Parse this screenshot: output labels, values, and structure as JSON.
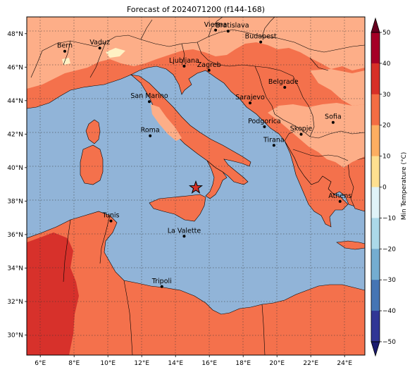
{
  "title": "Forecast of 2024071200 (f144-168)",
  "map": {
    "lon_range": [
      5.2,
      25.2
    ],
    "lat_range": [
      28.8,
      49.0
    ],
    "lon_ticks": [
      "6°E",
      "8°E",
      "10°E",
      "12°E",
      "14°E",
      "16°E",
      "18°E",
      "20°E",
      "22°E",
      "24°E"
    ],
    "lat_ticks": [
      "30°N",
      "32°N",
      "34°N",
      "36°N",
      "38°N",
      "40°N",
      "42°N",
      "44°N",
      "46°N",
      "48°N"
    ],
    "colors": {
      "sea": "#91b4d8",
      "land_20_30": "#f4714c",
      "land_10_20": "#fdae88",
      "land_0_10": "#fef1c4",
      "land_30_40": "#d7312b",
      "border": "#000000",
      "grid": "#333333"
    },
    "marker": {
      "name": "star-marker",
      "lon": 15.2,
      "lat": 38.8,
      "color": "#d73027"
    }
  },
  "cities": [
    {
      "name": "Bern",
      "lon": 7.45,
      "lat": 46.95
    },
    {
      "name": "Vaduz",
      "lon": 9.52,
      "lat": 47.14
    },
    {
      "name": "Vienna",
      "lon": 16.37,
      "lat": 48.21
    },
    {
      "name": "Bratislava",
      "lon": 17.11,
      "lat": 48.15
    },
    {
      "name": "Budapest",
      "lon": 19.04,
      "lat": 47.5
    },
    {
      "name": "Ljubljana",
      "lon": 14.51,
      "lat": 46.06
    },
    {
      "name": "Zagreb",
      "lon": 15.98,
      "lat": 45.81
    },
    {
      "name": "Belgrade",
      "lon": 20.46,
      "lat": 44.79
    },
    {
      "name": "San Marino",
      "lon": 12.45,
      "lat": 43.94
    },
    {
      "name": "Sarajevo",
      "lon": 18.41,
      "lat": 43.86
    },
    {
      "name": "Sofia",
      "lon": 23.32,
      "lat": 42.7
    },
    {
      "name": "Podgorica",
      "lon": 19.26,
      "lat": 42.44
    },
    {
      "name": "Skopje",
      "lon": 21.43,
      "lat": 41.99
    },
    {
      "name": "Roma",
      "lon": 12.5,
      "lat": 41.9
    },
    {
      "name": "Tirana",
      "lon": 19.82,
      "lat": 41.33
    },
    {
      "name": "Athens",
      "lon": 23.73,
      "lat": 37.98
    },
    {
      "name": "Tunis",
      "lon": 10.18,
      "lat": 36.81
    },
    {
      "name": "La Valette",
      "lon": 14.51,
      "lat": 35.9
    },
    {
      "name": "Tripoli",
      "lon": 13.19,
      "lat": 32.89
    }
  ],
  "colorbar": {
    "label": "Min Temperature (°C)",
    "ticks": [
      "50",
      "40",
      "30",
      "20",
      "10",
      "0",
      "−10",
      "−20",
      "−30",
      "−40",
      "−50"
    ],
    "bands": [
      "#67001f",
      "#b2182b",
      "#d6604d",
      "#f4a582",
      "#fddbc7",
      "#f7f7f7",
      "#d1e5f0",
      "#92c5de",
      "#4393c3",
      "#2166ac",
      "#053061"
    ],
    "fine_bands": [
      "#a50026",
      "#d73027",
      "#f46d43",
      "#fdae61",
      "#fee090",
      "#ffffbf",
      "#e0f3f8",
      "#abd9e9",
      "#74add1",
      "#4575b4",
      "#313695"
    ]
  }
}
